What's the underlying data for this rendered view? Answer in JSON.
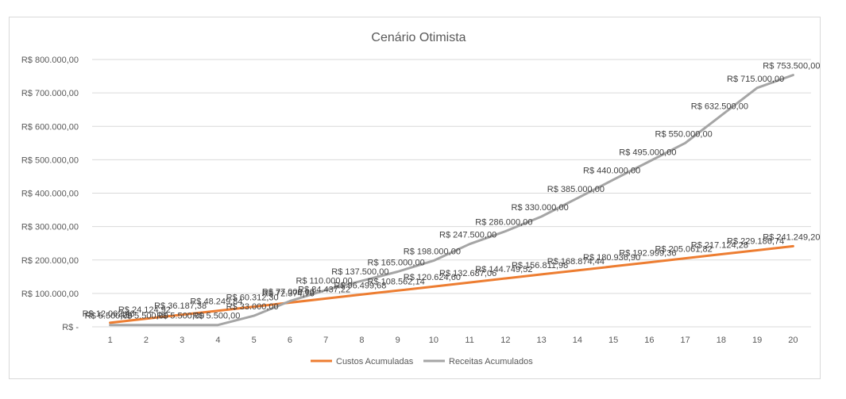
{
  "chart_data": {
    "type": "line",
    "title": "Cenário Otimista",
    "xlabel": "",
    "ylabel": "",
    "categories": [
      "1",
      "2",
      "3",
      "4",
      "5",
      "6",
      "7",
      "8",
      "9",
      "10",
      "11",
      "12",
      "13",
      "14",
      "15",
      "16",
      "17",
      "18",
      "19",
      "20"
    ],
    "ylim": [
      0,
      800000
    ],
    "yticks": [
      0,
      100000,
      200000,
      300000,
      400000,
      500000,
      600000,
      700000,
      800000
    ],
    "ytick_labels": [
      "R$ -",
      "R$ 100.000,00",
      "R$ 200.000,00",
      "R$ 300.000,00",
      "R$ 400.000,00",
      "R$ 500.000,00",
      "R$ 600.000,00",
      "R$ 700.000,00",
      "R$ 800.000,00"
    ],
    "grid": "horizontal",
    "legend_position": "bottom",
    "series": [
      {
        "name": "Custos Acumuladas",
        "color": "#ed7d31",
        "values": [
          12062.46,
          24124.92,
          36187.38,
          48249.84,
          60312.3,
          72374.76,
          84437.22,
          96499.68,
          108562.14,
          120624.6,
          132687.06,
          144749.52,
          156811.98,
          168874.44,
          180936.9,
          192999.36,
          205061.82,
          217124.28,
          229186.74,
          241249.2
        ],
        "labels": [
          "R$ 12.062,46",
          "R$ 24.124,92",
          "R$ 36.187,38",
          "R$ 48.249,84",
          "R$ 60.312,30",
          "R$ 72.374,76",
          "R$ 84.437,22",
          "R$ 96.499,68",
          "R$ 108.562,14",
          "R$ 120.624,60",
          "R$ 132.687,06",
          "R$ 144.749,52",
          "R$ 156.811,98",
          "R$ 168.874,44",
          "R$ 180.936,90",
          "R$ 192.999,36",
          "R$ 205.061,82",
          "R$ 217.124,28",
          "R$ 229.186,74",
          "R$ 241.249,20"
        ]
      },
      {
        "name": "Receitas Acumulados",
        "color": "#a5a5a5",
        "values": [
          5500,
          5500,
          5500,
          5500,
          33000,
          77000,
          110000,
          137500,
          165000,
          198000,
          247500,
          286000,
          330000,
          385000,
          440000,
          495000,
          550000,
          632500,
          715000,
          753500
        ],
        "labels": [
          "R$ 5.500,00",
          "R$ 5.500,00",
          "R$ 5.500,00",
          "R$ 5.500,00",
          "R$ 33.000,00",
          "R$ 77.000,00",
          "R$ 110.000,00",
          "R$ 137.500,00",
          "R$ 165.000,00",
          "R$ 198.000,00",
          "R$ 247.500,00",
          "R$ 286.000,00",
          "R$ 330.000,00",
          "R$ 385.000,00",
          "R$ 440.000,00",
          "R$ 495.000,00",
          "R$ 550.000,00",
          "R$ 632.500,00",
          "R$ 715.000,00",
          "R$ 753.500,00"
        ]
      }
    ]
  }
}
